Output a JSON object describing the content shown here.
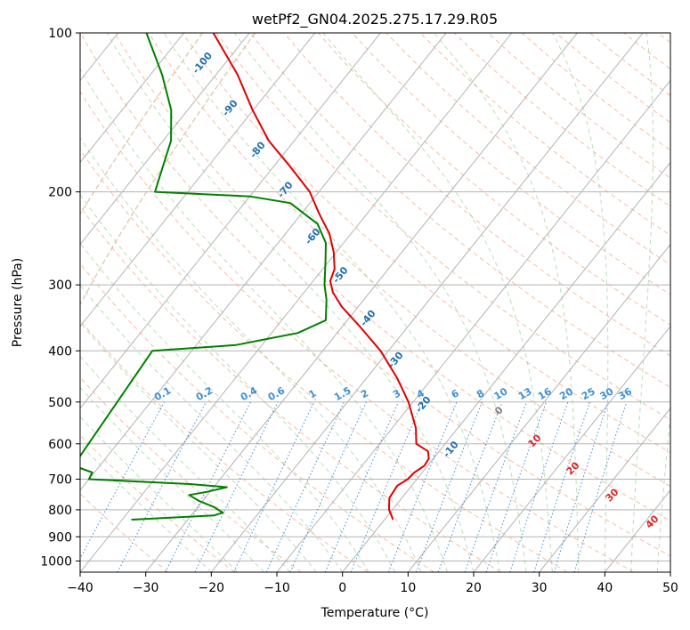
{
  "chart_data": {
    "type": "line",
    "title": "wetPf2_GN04.2025.275.17.29.R05",
    "xlabel": "Temperature (°C)",
    "ylabel": "Pressure (hPa)",
    "xlim": [
      -40,
      50
    ],
    "ylim": [
      1050,
      100
    ],
    "y_scale": "log",
    "skew": true,
    "grid": true,
    "x_ticks": [
      -40,
      -30,
      -20,
      -10,
      0,
      10,
      20,
      30,
      40,
      50
    ],
    "y_ticks": [
      1000,
      900,
      800,
      700,
      600,
      500,
      400,
      300,
      200,
      100
    ],
    "series": [
      {
        "color": "#e00000",
        "points": [
          {
            "p": 835,
            "t": 1.3
          },
          {
            "p": 800,
            "t": -0.5
          },
          {
            "p": 760,
            "t": -1.9
          },
          {
            "p": 720,
            "t": -2.2
          },
          {
            "p": 700,
            "t": -1.4
          },
          {
            "p": 680,
            "t": -1.2
          },
          {
            "p": 660,
            "t": -0.5
          },
          {
            "p": 640,
            "t": -0.7
          },
          {
            "p": 620,
            "t": -1.7
          },
          {
            "p": 600,
            "t": -4.4
          },
          {
            "p": 560,
            "t": -6.4
          },
          {
            "p": 500,
            "t": -10.7
          },
          {
            "p": 450,
            "t": -15.4
          },
          {
            "p": 400,
            "t": -21.2
          },
          {
            "p": 360,
            "t": -27.3
          },
          {
            "p": 330,
            "t": -32.5
          },
          {
            "p": 310,
            "t": -35.6
          },
          {
            "p": 295,
            "t": -37.4
          },
          {
            "p": 280,
            "t": -38.2
          },
          {
            "p": 260,
            "t": -40.4
          },
          {
            "p": 240,
            "t": -43.3
          },
          {
            "p": 220,
            "t": -47.3
          },
          {
            "p": 200,
            "t": -51.4
          },
          {
            "p": 180,
            "t": -57.2
          },
          {
            "p": 160,
            "t": -63.9
          },
          {
            "p": 140,
            "t": -70.1
          },
          {
            "p": 120,
            "t": -76.7
          },
          {
            "p": 110,
            "t": -80.9
          },
          {
            "p": 100,
            "t": -85.5
          }
        ]
      },
      {
        "color": "#008000",
        "points": [
          {
            "p": 835,
            "t": -38.6
          },
          {
            "p": 820,
            "t": -26.5
          },
          {
            "p": 810,
            "t": -25.5
          },
          {
            "p": 790,
            "t": -27.6
          },
          {
            "p": 770,
            "t": -30.5
          },
          {
            "p": 750,
            "t": -32.8
          },
          {
            "p": 740,
            "t": -30.5
          },
          {
            "p": 725,
            "t": -28.0
          },
          {
            "p": 715,
            "t": -34.0
          },
          {
            "p": 700,
            "t": -50.0
          },
          {
            "p": 680,
            "t": -50.3
          },
          {
            "p": 660,
            "t": -54.0
          },
          {
            "p": 400,
            "t": -56.0
          },
          {
            "p": 390,
            "t": -44.0
          },
          {
            "p": 370,
            "t": -36.0
          },
          {
            "p": 350,
            "t": -33.3
          },
          {
            "p": 320,
            "t": -35.7
          },
          {
            "p": 300,
            "t": -37.8
          },
          {
            "p": 270,
            "t": -40.6
          },
          {
            "p": 250,
            "t": -42.7
          },
          {
            "p": 230,
            "t": -46.3
          },
          {
            "p": 210,
            "t": -53.0
          },
          {
            "p": 204,
            "t": -60.0
          },
          {
            "p": 200,
            "t": -75.0
          },
          {
            "p": 180,
            "t": -76.8
          },
          {
            "p": 160,
            "t": -78.8
          },
          {
            "p": 140,
            "t": -82.5
          },
          {
            "p": 120,
            "t": -88.2
          },
          {
            "p": 100,
            "t": -95.7
          }
        ]
      }
    ],
    "mixing_ratio_labels": [
      "0.1",
      "0.2",
      "0.4",
      "0.6",
      "1",
      "1.5",
      "2",
      "3",
      "4",
      "6",
      "8",
      "10",
      "13",
      "16",
      "20",
      "25",
      "30",
      "36"
    ],
    "saturation_adiabat_labels": [
      "-100",
      "-90",
      "-80",
      "-70",
      "-60",
      "-50",
      "-40",
      "-30",
      "-20",
      "-10"
    ],
    "dry_adiabat_labels": [
      "0",
      "10",
      "20",
      "30",
      "40"
    ]
  }
}
